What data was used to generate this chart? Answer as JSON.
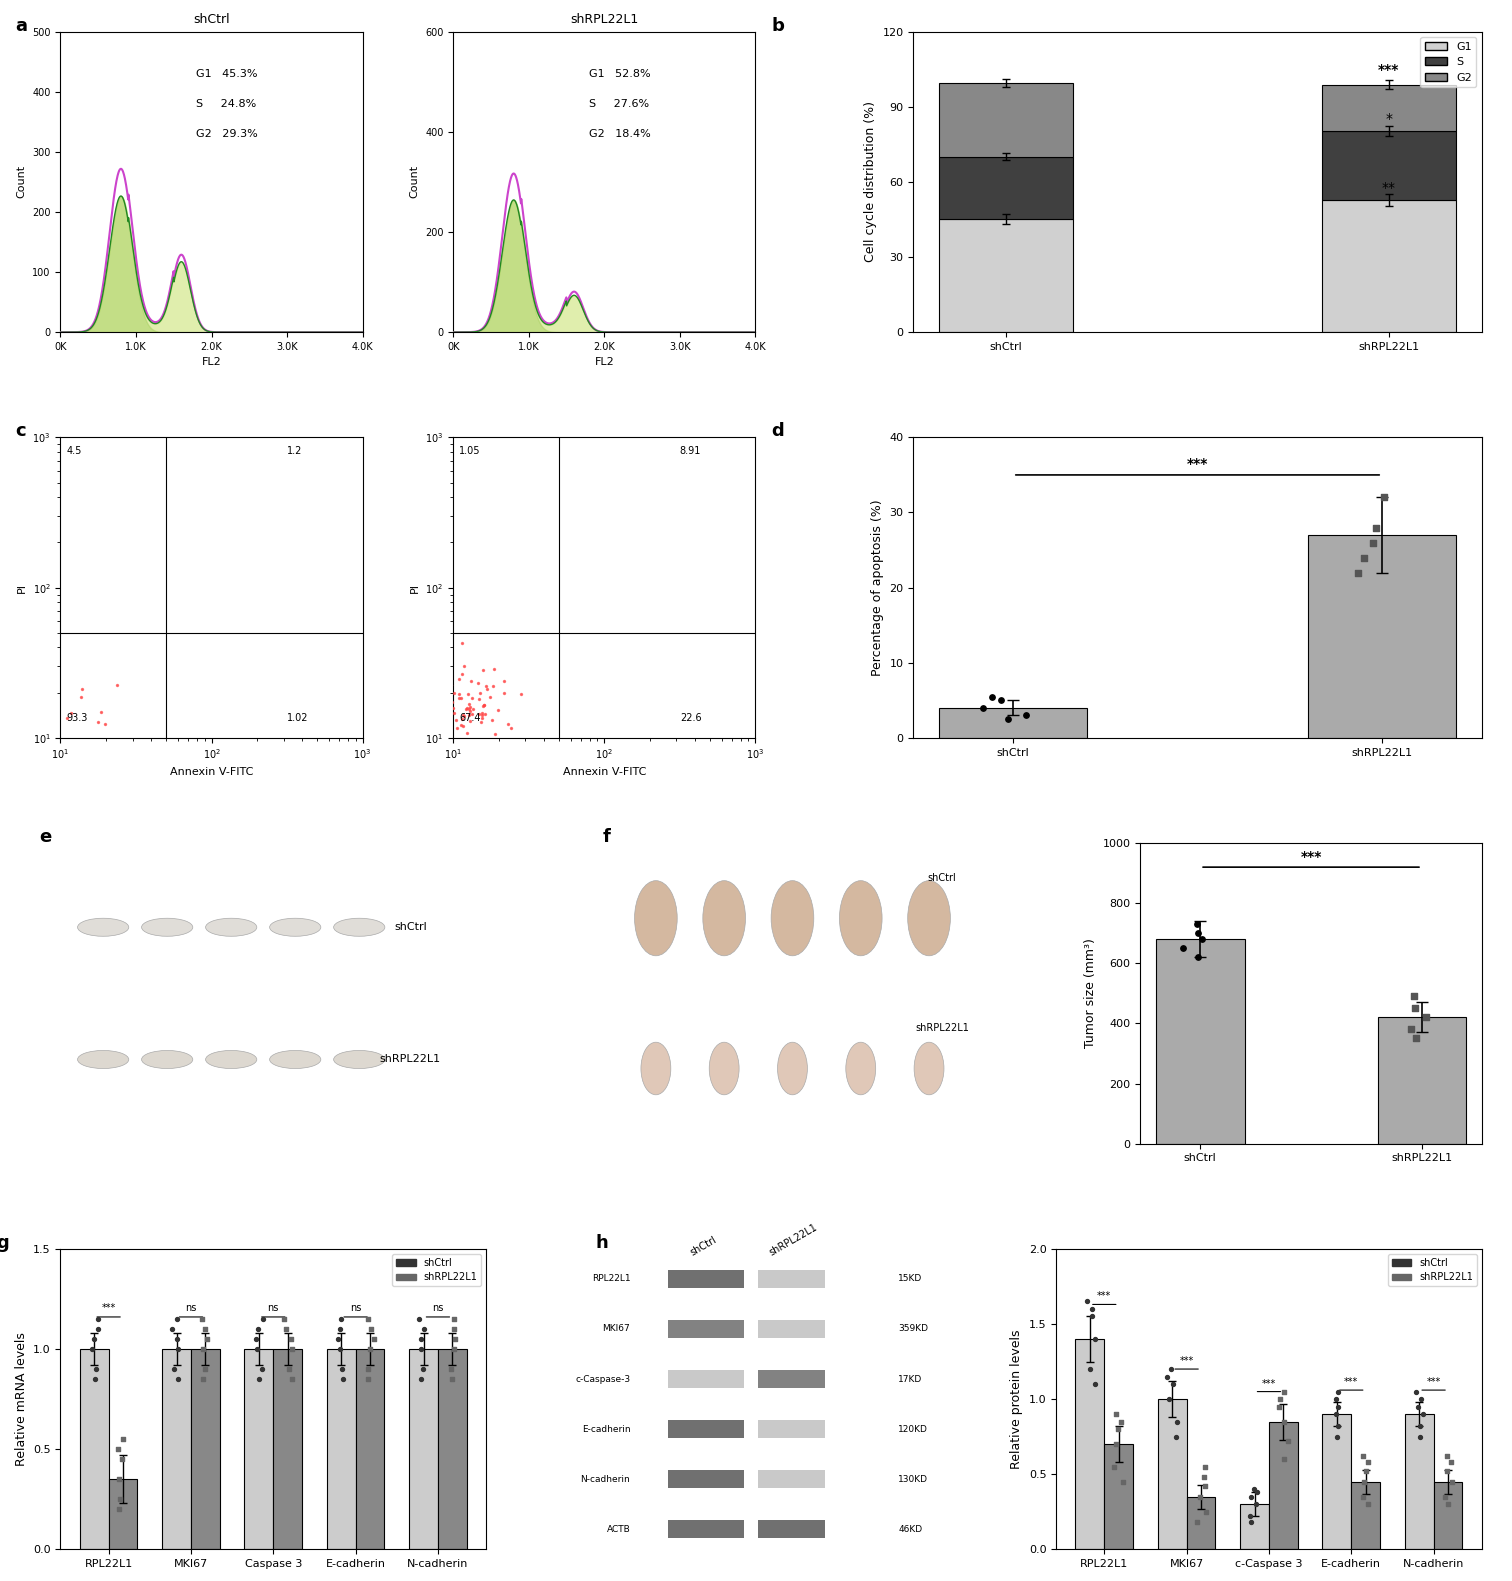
{
  "panel_b": {
    "categories": [
      "shCtrl",
      "shRPL22L1"
    ],
    "G1": [
      45.3,
      52.8
    ],
    "S": [
      24.8,
      27.6
    ],
    "G2": [
      29.3,
      18.4
    ],
    "G1_err": [
      2.0,
      2.5
    ],
    "S_err": [
      1.5,
      2.0
    ],
    "G2_err": [
      1.5,
      1.8
    ],
    "colors": {
      "G1": "#d0d0d0",
      "S": "#404040",
      "G2": "#888888"
    },
    "ylabel": "Cell cycle distribution (%)",
    "ylim": [
      0,
      120
    ],
    "yticks": [
      0,
      30,
      60,
      90,
      120
    ],
    "significance": {
      "G1": "***",
      "S": "*",
      "G2": "**"
    }
  },
  "panel_d": {
    "categories": [
      "shCtrl",
      "shRPL22L1"
    ],
    "values": [
      4.0,
      27.0
    ],
    "errors": [
      1.0,
      5.0
    ],
    "scatter_shCtrl": [
      2.5,
      3.0,
      4.0,
      5.0,
      5.5
    ],
    "scatter_shRPL22L1": [
      22.0,
      24.0,
      26.0,
      28.0,
      32.0
    ],
    "bar_color": "#aaaaaa",
    "ylabel": "Percentage of apoptosis (%)",
    "ylim": [
      0,
      40
    ],
    "yticks": [
      0,
      10,
      20,
      30,
      40
    ],
    "significance": "***"
  },
  "panel_f_bar": {
    "categories": [
      "shCtrl",
      "shRPL22L1"
    ],
    "values": [
      680,
      420
    ],
    "errors": [
      60,
      50
    ],
    "scatter_shCtrl": [
      620,
      650,
      680,
      700,
      730
    ],
    "scatter_shRPL22L1": [
      350,
      380,
      420,
      450,
      490
    ],
    "bar_color": "#aaaaaa",
    "ylabel": "Tumor size (mm³)",
    "ylim": [
      0,
      1000
    ],
    "yticks": [
      0,
      200,
      400,
      600,
      800,
      1000
    ],
    "significance": "***"
  },
  "panel_g": {
    "categories": [
      "RPL22L1",
      "MKI67",
      "Caspase 3",
      "E-cadherin",
      "N-cadherin"
    ],
    "shCtrl_means": [
      1.0,
      1.0,
      1.0,
      1.0,
      1.0
    ],
    "shRPL22L1_means": [
      0.35,
      1.0,
      1.0,
      1.0,
      1.0
    ],
    "shCtrl_err": [
      0.08,
      0.08,
      0.08,
      0.08,
      0.08
    ],
    "shRPL22L1_err": [
      0.12,
      0.08,
      0.08,
      0.08,
      0.08
    ],
    "shCtrl_scatter": [
      [
        0.85,
        0.9,
        1.0,
        1.05,
        1.1,
        1.15
      ],
      [
        0.85,
        0.9,
        1.0,
        1.05,
        1.1,
        1.15
      ],
      [
        0.85,
        0.9,
        1.0,
        1.05,
        1.1,
        1.15
      ],
      [
        0.85,
        0.9,
        1.0,
        1.05,
        1.1,
        1.15
      ],
      [
        0.85,
        0.9,
        1.0,
        1.05,
        1.1,
        1.15
      ]
    ],
    "shRPL22L1_scatter": [
      [
        0.2,
        0.25,
        0.35,
        0.45,
        0.5,
        0.55
      ],
      [
        0.85,
        0.9,
        1.0,
        1.05,
        1.1,
        1.15
      ],
      [
        0.85,
        0.9,
        1.0,
        1.05,
        1.1,
        1.15
      ],
      [
        0.85,
        0.9,
        1.0,
        1.05,
        1.1,
        1.15
      ],
      [
        0.85,
        0.9,
        1.0,
        1.05,
        1.1,
        1.15
      ]
    ],
    "shCtrl_color": "#333333",
    "shRPL22L1_color": "#666666",
    "bar_color_ctrl": "#cccccc",
    "bar_color_kd": "#888888",
    "ylabel": "Relative mRNA levels",
    "ylim": [
      0,
      1.5
    ],
    "yticks": [
      0.0,
      0.5,
      1.0,
      1.5
    ],
    "significance": [
      "***",
      "ns",
      "ns",
      "ns",
      "ns"
    ]
  },
  "panel_h_bar": {
    "categories": [
      "RPL22L1",
      "MKI67",
      "c-Caspase 3",
      "E-cadherin",
      "N-cadherin"
    ],
    "shCtrl_means": [
      1.4,
      1.0,
      0.3,
      0.9,
      0.9
    ],
    "shRPL22L1_means": [
      0.7,
      0.35,
      0.85,
      0.45,
      0.45
    ],
    "shCtrl_err": [
      0.15,
      0.12,
      0.08,
      0.08,
      0.08
    ],
    "shRPL22L1_err": [
      0.12,
      0.08,
      0.12,
      0.08,
      0.08
    ],
    "shCtrl_scatter": [
      [
        1.1,
        1.2,
        1.4,
        1.55,
        1.6,
        1.65
      ],
      [
        0.75,
        0.85,
        1.0,
        1.1,
        1.15,
        1.2
      ],
      [
        0.18,
        0.22,
        0.3,
        0.35,
        0.38,
        0.4
      ],
      [
        0.75,
        0.82,
        0.9,
        0.95,
        1.0,
        1.05
      ],
      [
        0.75,
        0.82,
        0.9,
        0.95,
        1.0,
        1.05
      ]
    ],
    "shRPL22L1_scatter": [
      [
        0.45,
        0.55,
        0.7,
        0.8,
        0.85,
        0.9
      ],
      [
        0.18,
        0.25,
        0.35,
        0.42,
        0.48,
        0.55
      ],
      [
        0.6,
        0.72,
        0.85,
        0.95,
        1.0,
        1.05
      ],
      [
        0.3,
        0.35,
        0.45,
        0.52,
        0.58,
        0.62
      ],
      [
        0.3,
        0.35,
        0.45,
        0.52,
        0.58,
        0.62
      ]
    ],
    "shCtrl_color": "#333333",
    "shRPL22L1_color": "#666666",
    "bar_color_ctrl": "#cccccc",
    "bar_color_kd": "#888888",
    "ylabel": "Relative protein levels",
    "ylim": [
      0,
      2.0
    ],
    "yticks": [
      0.0,
      0.5,
      1.0,
      1.5,
      2.0
    ],
    "significance": [
      "***",
      "***",
      "***",
      "***",
      "***"
    ]
  },
  "panel_wb": {
    "proteins": [
      "RPL22L1",
      "MKI67",
      "c-Caspase-3",
      "E-cadherin",
      "N-cadherin",
      "ACTB"
    ],
    "kds": [
      "15KD",
      "359KD",
      "17KD",
      "120KD",
      "130KD",
      "46KD"
    ],
    "shCtrl_intensity": [
      0.8,
      0.7,
      0.3,
      0.8,
      0.8,
      0.8
    ],
    "shRPL22L1_intensity": [
      0.3,
      0.3,
      0.7,
      0.3,
      0.3,
      0.8
    ]
  },
  "colors": {
    "background": "#ffffff",
    "border": "#000000",
    "light_gray": "#d0d0d0",
    "mid_gray": "#888888",
    "dark_gray": "#404040"
  }
}
